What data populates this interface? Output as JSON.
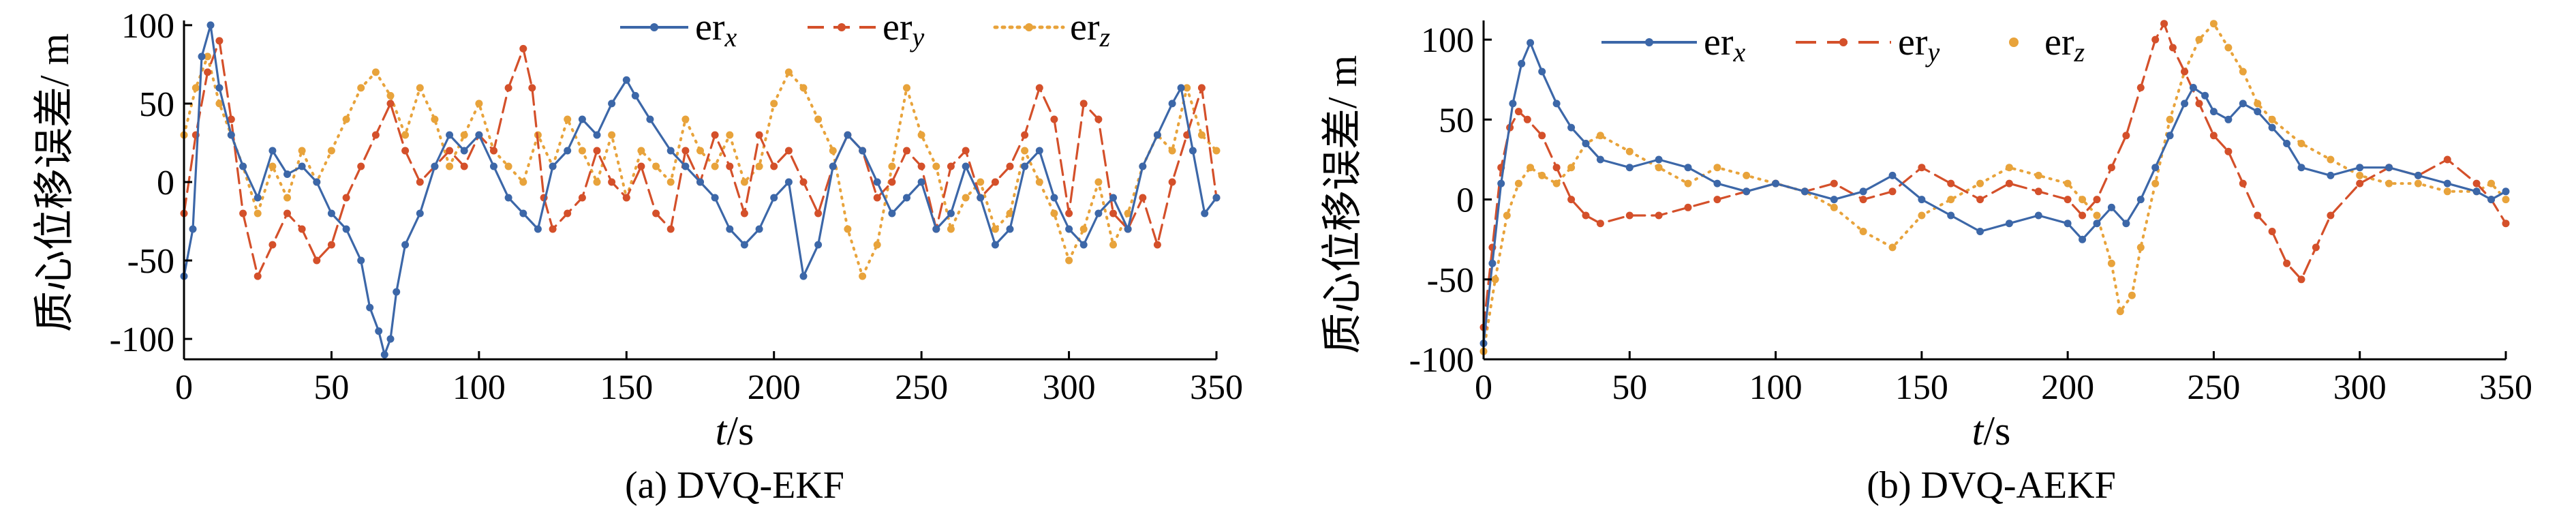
{
  "colors": {
    "er_x": "#3c67a8",
    "er_y": "#d4502a",
    "er_z": "#e8a33b"
  },
  "chart_data": [
    {
      "type": "line",
      "caption": "(a) DVQ-EKF",
      "xlabel_italic": "t",
      "xlabel_unit": "/s",
      "ylabel": "质心位移误差/ m",
      "xlim": [
        0,
        350
      ],
      "ylim": [
        -113,
        103
      ],
      "xticks": [
        0,
        50,
        100,
        150,
        200,
        250,
        300,
        350
      ],
      "yticks": [
        -100,
        -50,
        0,
        50,
        100
      ],
      "legend_position": "top-right",
      "series": [
        {
          "name": "er",
          "sub": "x",
          "style": "solid-dot",
          "x": [
            0,
            3,
            6,
            9,
            12,
            16,
            20,
            25,
            30,
            35,
            40,
            45,
            50,
            55,
            60,
            63,
            66,
            68,
            70,
            72,
            75,
            80,
            85,
            90,
            95,
            100,
            105,
            110,
            115,
            120,
            125,
            130,
            135,
            140,
            145,
            150,
            153,
            158,
            165,
            170,
            175,
            180,
            185,
            190,
            195,
            200,
            205,
            210,
            215,
            220,
            225,
            230,
            235,
            240,
            245,
            250,
            255,
            260,
            265,
            270,
            275,
            280,
            285,
            290,
            295,
            300,
            305,
            310,
            315,
            320,
            325,
            330,
            335,
            338,
            342,
            346,
            350
          ],
          "values": [
            -60,
            -30,
            80,
            100,
            60,
            30,
            10,
            -10,
            20,
            5,
            10,
            0,
            -20,
            -30,
            -50,
            -80,
            -95,
            -110,
            -100,
            -70,
            -40,
            -20,
            10,
            30,
            20,
            30,
            10,
            -10,
            -20,
            -30,
            10,
            20,
            40,
            30,
            50,
            65,
            55,
            40,
            20,
            10,
            0,
            -10,
            -30,
            -40,
            -30,
            -10,
            0,
            -60,
            -40,
            10,
            30,
            20,
            0,
            -20,
            -10,
            0,
            -30,
            -20,
            10,
            -10,
            -40,
            -30,
            10,
            20,
            -10,
            -30,
            -40,
            -20,
            -10,
            -30,
            10,
            30,
            50,
            60,
            20,
            -20,
            -10
          ]
        },
        {
          "name": "er",
          "sub": "y",
          "style": "dash-dot",
          "x": [
            0,
            4,
            8,
            12,
            16,
            20,
            25,
            30,
            35,
            40,
            45,
            50,
            55,
            60,
            65,
            70,
            75,
            80,
            85,
            90,
            95,
            100,
            105,
            110,
            115,
            118,
            122,
            125,
            130,
            135,
            140,
            145,
            150,
            155,
            160,
            165,
            170,
            175,
            180,
            185,
            190,
            195,
            200,
            205,
            210,
            215,
            220,
            225,
            230,
            235,
            240,
            245,
            250,
            255,
            260,
            265,
            270,
            275,
            280,
            285,
            290,
            295,
            300,
            305,
            310,
            315,
            320,
            325,
            330,
            335,
            340,
            345,
            350
          ],
          "values": [
            -20,
            30,
            70,
            90,
            40,
            -20,
            -60,
            -40,
            -20,
            -30,
            -50,
            -40,
            -10,
            10,
            30,
            50,
            20,
            0,
            10,
            20,
            10,
            30,
            20,
            60,
            85,
            60,
            -10,
            -30,
            -20,
            -10,
            20,
            0,
            -10,
            10,
            -20,
            -30,
            20,
            0,
            30,
            10,
            -20,
            30,
            10,
            20,
            0,
            -20,
            10,
            30,
            20,
            -10,
            0,
            20,
            10,
            -30,
            10,
            20,
            -10,
            0,
            10,
            30,
            60,
            40,
            -20,
            50,
            40,
            -20,
            -30,
            -10,
            -40,
            0,
            30,
            60,
            -10
          ]
        },
        {
          "name": "er",
          "sub": "z",
          "style": "dotted",
          "x": [
            0,
            4,
            8,
            12,
            16,
            20,
            25,
            30,
            35,
            40,
            45,
            50,
            55,
            60,
            65,
            70,
            75,
            80,
            85,
            90,
            95,
            100,
            105,
            110,
            115,
            120,
            125,
            130,
            135,
            140,
            145,
            150,
            155,
            160,
            165,
            170,
            175,
            180,
            185,
            190,
            195,
            200,
            205,
            210,
            215,
            220,
            225,
            230,
            235,
            240,
            245,
            250,
            255,
            260,
            265,
            270,
            275,
            280,
            285,
            290,
            295,
            300,
            305,
            310,
            315,
            320,
            325,
            330,
            335,
            340,
            345,
            350
          ],
          "values": [
            30,
            60,
            80,
            50,
            30,
            10,
            -20,
            10,
            -10,
            20,
            0,
            20,
            40,
            60,
            70,
            55,
            30,
            60,
            40,
            10,
            30,
            50,
            20,
            10,
            0,
            30,
            10,
            40,
            20,
            0,
            30,
            -10,
            20,
            10,
            0,
            40,
            20,
            10,
            30,
            0,
            10,
            50,
            70,
            60,
            40,
            20,
            -30,
            -60,
            -40,
            10,
            60,
            30,
            10,
            -30,
            -10,
            0,
            -30,
            -20,
            20,
            0,
            -20,
            -50,
            -30,
            0,
            -40,
            -20,
            10,
            30,
            20,
            60,
            30,
            20
          ]
        }
      ]
    },
    {
      "type": "line",
      "caption": "(b) DVQ-AEKF",
      "xlabel_italic": "t",
      "xlabel_unit": "/s",
      "ylabel": "质心位移误差/ m",
      "xlim": [
        0,
        350
      ],
      "ylim": [
        -100,
        112
      ],
      "xticks": [
        0,
        50,
        100,
        150,
        200,
        250,
        300,
        350
      ],
      "yticks": [
        -100,
        -50,
        0,
        50,
        100
      ],
      "legend_position": "top",
      "series": [
        {
          "name": "er",
          "sub": "x",
          "style": "solid-dot",
          "x": [
            0,
            3,
            6,
            10,
            13,
            16,
            20,
            25,
            30,
            35,
            40,
            50,
            60,
            70,
            80,
            90,
            100,
            110,
            120,
            130,
            140,
            150,
            160,
            170,
            180,
            190,
            200,
            205,
            210,
            215,
            220,
            225,
            230,
            235,
            240,
            243,
            247,
            250,
            255,
            260,
            265,
            270,
            275,
            280,
            290,
            300,
            310,
            320,
            330,
            340,
            345,
            350
          ],
          "values": [
            -90,
            -40,
            10,
            60,
            85,
            98,
            80,
            60,
            45,
            35,
            25,
            20,
            25,
            20,
            10,
            5,
            10,
            5,
            0,
            5,
            15,
            0,
            -10,
            -20,
            -15,
            -10,
            -15,
            -25,
            -15,
            -5,
            -15,
            0,
            20,
            40,
            60,
            70,
            65,
            55,
            50,
            60,
            55,
            45,
            35,
            20,
            15,
            20,
            20,
            15,
            10,
            5,
            0,
            5
          ]
        },
        {
          "name": "er",
          "sub": "y",
          "style": "dash-dot",
          "x": [
            0,
            3,
            6,
            9,
            12,
            15,
            20,
            25,
            30,
            35,
            40,
            50,
            60,
            70,
            80,
            90,
            100,
            110,
            120,
            130,
            140,
            150,
            160,
            170,
            180,
            190,
            200,
            205,
            210,
            215,
            220,
            225,
            230,
            233,
            236,
            240,
            245,
            250,
            255,
            260,
            265,
            270,
            275,
            280,
            285,
            290,
            300,
            310,
            320,
            330,
            340,
            345,
            350
          ],
          "values": [
            -80,
            -30,
            20,
            45,
            55,
            50,
            40,
            20,
            0,
            -10,
            -15,
            -10,
            -10,
            -5,
            0,
            5,
            10,
            5,
            10,
            0,
            5,
            20,
            10,
            0,
            10,
            5,
            0,
            -10,
            0,
            20,
            40,
            70,
            100,
            110,
            95,
            80,
            60,
            40,
            30,
            10,
            -10,
            -20,
            -40,
            -50,
            -30,
            -10,
            10,
            20,
            15,
            25,
            10,
            0,
            -15
          ]
        },
        {
          "name": "er",
          "sub": "z",
          "style": "dotted",
          "x": [
            0,
            4,
            8,
            12,
            16,
            20,
            25,
            30,
            35,
            40,
            50,
            60,
            70,
            80,
            90,
            100,
            110,
            120,
            130,
            140,
            150,
            160,
            170,
            180,
            190,
            200,
            205,
            210,
            215,
            218,
            222,
            225,
            230,
            235,
            240,
            245,
            250,
            255,
            260,
            265,
            270,
            280,
            290,
            300,
            310,
            320,
            330,
            340,
            345,
            350
          ],
          "values": [
            -95,
            -50,
            -10,
            10,
            20,
            15,
            10,
            20,
            35,
            40,
            30,
            20,
            10,
            20,
            15,
            10,
            5,
            -5,
            -20,
            -30,
            -10,
            0,
            10,
            20,
            15,
            10,
            0,
            -10,
            -40,
            -70,
            -60,
            -30,
            10,
            50,
            80,
            100,
            110,
            95,
            80,
            60,
            50,
            35,
            25,
            15,
            10,
            10,
            5,
            5,
            10,
            0
          ]
        }
      ]
    }
  ]
}
